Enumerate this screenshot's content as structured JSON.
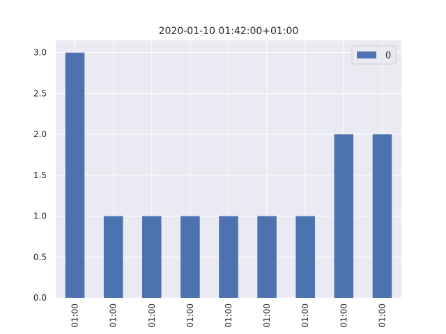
{
  "chart_data": {
    "type": "bar",
    "title": "2020-01-10 01:42:00+01:00",
    "categories": [
      "01:00",
      "01:00",
      "01:00",
      "01:00",
      "01:00",
      "01:00",
      "01:00",
      "01:00",
      "01:00"
    ],
    "series": [
      {
        "name": "0",
        "values": [
          3,
          1,
          1,
          1,
          1,
          1,
          1,
          2,
          2
        ],
        "color": "#4c72b0"
      }
    ],
    "ylim": [
      0,
      3.15
    ],
    "yticks": [
      0.0,
      0.5,
      1.0,
      1.5,
      2.0,
      2.5,
      3.0
    ],
    "ytick_labels": [
      "0.0",
      "0.5",
      "1.0",
      "1.5",
      "2.0",
      "2.5",
      "3.0"
    ],
    "xlabel": "",
    "ylabel": "",
    "grid": true,
    "legend_position": "top-right",
    "background_color": "#eaeaf2",
    "grid_color": "#ffffff"
  }
}
